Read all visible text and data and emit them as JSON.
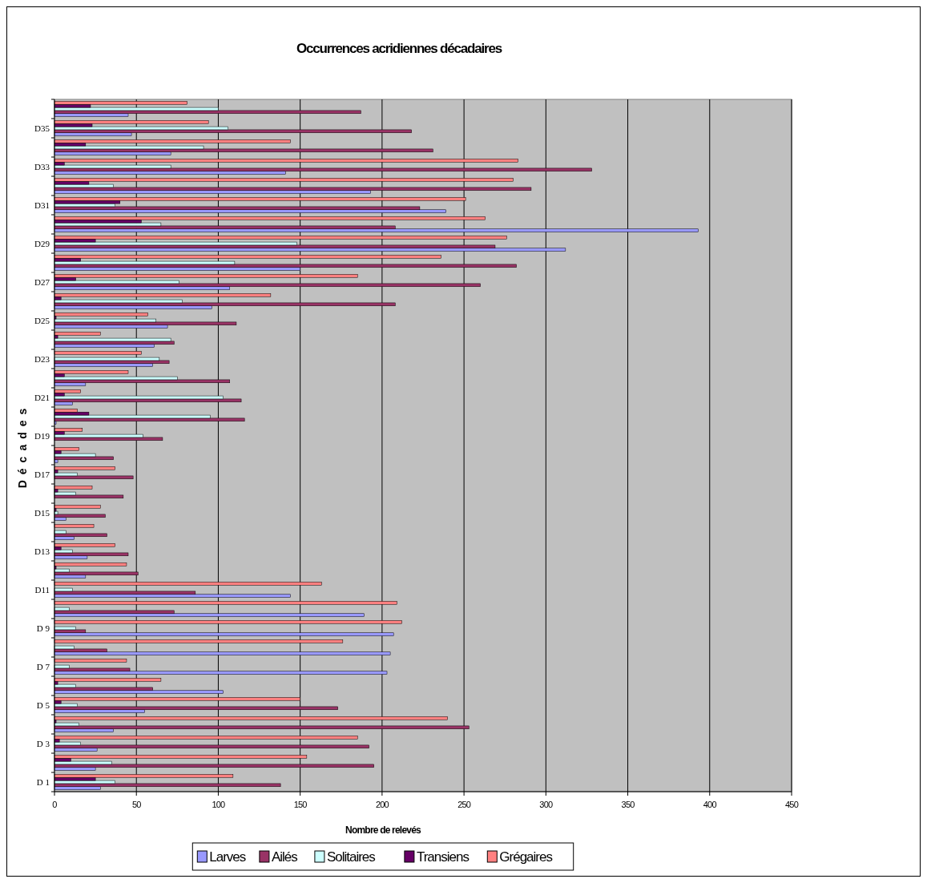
{
  "chart_data": {
    "type": "bar",
    "orientation": "horizontal",
    "title": "Occurrences acridiennes décadaires",
    "xlabel": "Nombre de relevés",
    "ylabel": "Décades",
    "categories": [
      null,
      "D35",
      null,
      "D33",
      null,
      "D31",
      null,
      "D29",
      null,
      "D27",
      null,
      "D25",
      null,
      "D23",
      null,
      "D21",
      null,
      "D19",
      null,
      "D17",
      null,
      "D15",
      null,
      "D13",
      null,
      "D11",
      null,
      "D 9",
      null,
      "D 7",
      null,
      "D 5",
      null,
      "D 3",
      null,
      "D 1"
    ],
    "xlim": [
      0,
      450
    ],
    "xticks": [
      0,
      50,
      100,
      150,
      200,
      250,
      300,
      350,
      400,
      450
    ],
    "grid": "x",
    "legend": "bottom",
    "series": [
      {
        "name": "Larves",
        "color": "#9999ff",
        "values": [
          45,
          47,
          71,
          141,
          193,
          239,
          393,
          312,
          150,
          107,
          96,
          69,
          61,
          60,
          19,
          11,
          1,
          0,
          2,
          0,
          0,
          7,
          12,
          20,
          19,
          144,
          189,
          207,
          205,
          203,
          103,
          55,
          36,
          26,
          25,
          28
        ]
      },
      {
        "name": "Ailés",
        "color": "#993366",
        "values": [
          187,
          218,
          231,
          328,
          291,
          223,
          208,
          269,
          282,
          260,
          208,
          111,
          73,
          70,
          107,
          114,
          116,
          66,
          36,
          48,
          42,
          31,
          32,
          45,
          51,
          86,
          73,
          19,
          32,
          46,
          60,
          173,
          253,
          192,
          195,
          138
        ]
      },
      {
        "name": "Solitaires",
        "color": "#ccffff",
        "values": [
          100,
          106,
          91,
          71,
          36,
          37,
          65,
          148,
          110,
          76,
          78,
          62,
          71,
          64,
          75,
          103,
          95,
          54,
          25,
          14,
          13,
          2,
          7,
          11,
          9,
          11,
          9,
          13,
          12,
          9,
          13,
          14,
          15,
          16,
          35,
          37
        ]
      },
      {
        "name": "Transiens",
        "color": "#660066",
        "values": [
          22,
          23,
          19,
          6,
          21,
          40,
          53,
          25,
          16,
          13,
          4,
          1,
          2,
          0,
          6,
          6,
          21,
          6,
          4,
          2,
          2,
          1,
          0,
          4,
          1,
          0,
          0,
          0,
          0,
          0,
          2,
          4,
          1,
          3,
          10,
          25
        ]
      },
      {
        "name": "Grégaires",
        "color": "#ff8080",
        "values": [
          81,
          94,
          144,
          283,
          280,
          251,
          263,
          276,
          236,
          185,
          132,
          57,
          28,
          53,
          45,
          16,
          14,
          17,
          15,
          37,
          23,
          28,
          24,
          37,
          44,
          163,
          209,
          212,
          176,
          44,
          65,
          150,
          240,
          185,
          154,
          109
        ]
      }
    ]
  }
}
